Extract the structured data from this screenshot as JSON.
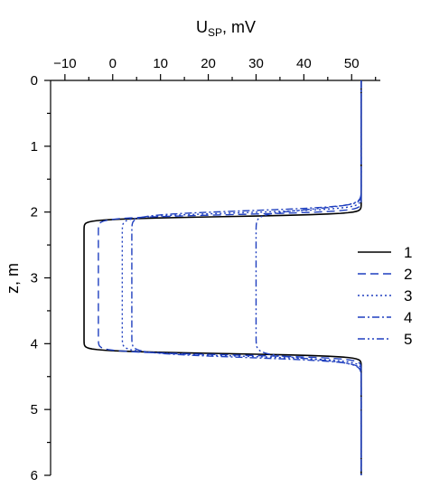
{
  "chart_data": {
    "type": "line",
    "title": "",
    "xlabel_main": "U",
    "xlabel_sub": "SP",
    "xlabel_unit": ", mV",
    "ylabel": "z, m",
    "xlim": [
      -13,
      56
    ],
    "ylim": [
      0,
      6
    ],
    "y_inverted": true,
    "x_axis_position": "top",
    "x_ticks": [
      -10,
      0,
      10,
      20,
      30,
      40,
      50
    ],
    "x_tick_labels": [
      "−10",
      "0",
      "10",
      "20",
      "30",
      "40",
      "50"
    ],
    "y_ticks": [
      0,
      1,
      2,
      3,
      4,
      5,
      6
    ],
    "y_tick_labels": [
      "0",
      "1",
      "2",
      "3",
      "4",
      "5",
      "6"
    ],
    "grid": false,
    "legend_position": "right",
    "baseline_value": 52,
    "series": [
      {
        "name": "1",
        "color": "#000000",
        "dash": "solid",
        "min_value": -6,
        "layer_top": 2.07,
        "layer_bottom": 4.15,
        "transition_width": 0.04
      },
      {
        "name": "2",
        "color": "#1f3fbf",
        "dash": "long-dash",
        "min_value": -3,
        "layer_top": 2.04,
        "layer_bottom": 4.17,
        "transition_width": 0.05
      },
      {
        "name": "3",
        "color": "#1f3fbf",
        "dash": "dot",
        "min_value": 2,
        "layer_top": 2.01,
        "layer_bottom": 4.19,
        "transition_width": 0.06
      },
      {
        "name": "4",
        "color": "#1f3fbf",
        "dash": "dash-dot",
        "min_value": 4,
        "layer_top": 1.98,
        "layer_bottom": 4.21,
        "transition_width": 0.065
      },
      {
        "name": "5",
        "color": "#1f3fbf",
        "dash": "dash-dot-dot",
        "min_value": 30,
        "layer_top": 1.96,
        "layer_bottom": 4.23,
        "transition_width": 0.075
      }
    ]
  }
}
